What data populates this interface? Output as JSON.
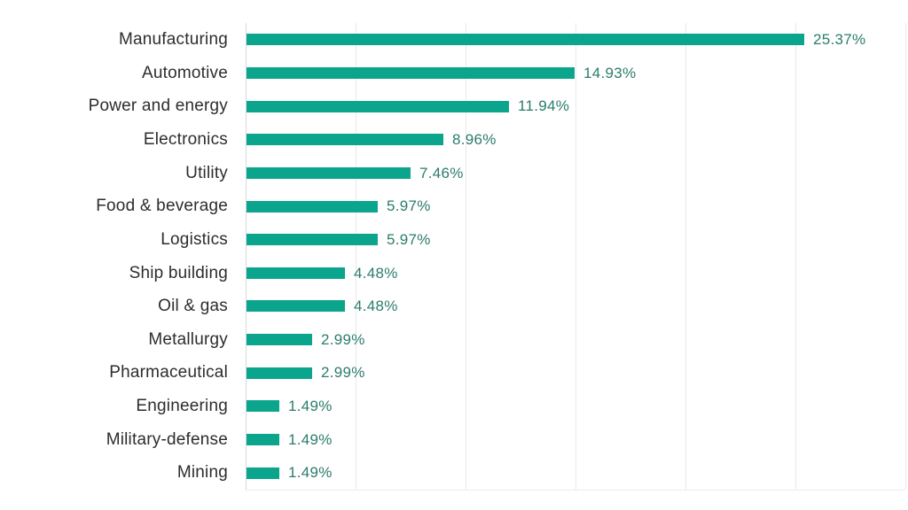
{
  "chart_data": {
    "type": "bar",
    "orientation": "horizontal",
    "title": "",
    "xlabel": "",
    "ylabel": "",
    "categories": [
      "Manufacturing",
      "Automotive",
      "Power and energy",
      "Electronics",
      "Utility",
      "Food & beverage",
      "Logistics",
      "Ship building",
      "Oil & gas",
      "Metallurgy",
      "Pharmaceutical",
      "Engineering",
      "Military-defense",
      "Mining"
    ],
    "values": [
      25.37,
      14.93,
      11.94,
      8.96,
      7.46,
      5.97,
      5.97,
      4.48,
      4.48,
      2.99,
      2.99,
      1.49,
      1.49,
      1.49
    ],
    "value_labels": [
      "25.37%",
      "14.93%",
      "11.94%",
      "8.96%",
      "7.46%",
      "5.97%",
      "5.97%",
      "4.48%",
      "4.48%",
      "2.99%",
      "2.99%",
      "1.49%",
      "1.49%",
      "1.49%"
    ],
    "xlim": [
      0,
      30
    ],
    "gridline_step": 5,
    "grid_on": true,
    "legend": "none",
    "colors": {
      "bar": "#0aa58c",
      "value_label": "#2b7c6c",
      "category_label": "#2d2d2d",
      "gridline": "#e9e9e9",
      "axis_line": "#d8d8d8",
      "background": "#ffffff"
    }
  }
}
